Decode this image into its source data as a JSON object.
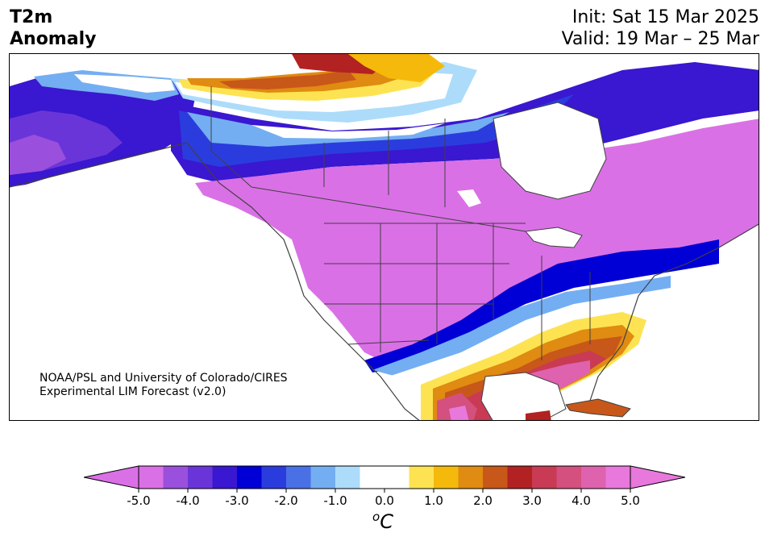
{
  "title": {
    "line1": "T2m",
    "line2": "Anomaly"
  },
  "dates": {
    "init": "Init: Sat 15 Mar 2025",
    "valid": "Valid: 19 Mar – 25 Mar"
  },
  "credit": {
    "line1": "NOAA/PSL and University of Colorado/CIRES",
    "line2": "Experimental LIM Forecast (v2.0)"
  },
  "colorbar": {
    "unit_main": "C",
    "unit_sup": "o",
    "ticks": [
      "-5.0",
      "-4.0",
      "-3.0",
      "-2.0",
      "-1.0",
      "0.0",
      "1.0",
      "2.0",
      "3.0",
      "4.0",
      "5.0"
    ],
    "colors": [
      "#da70e6",
      "#9a50dc",
      "#6a35d8",
      "#3a17d0",
      "#0000d6",
      "#2b3cde",
      "#4a70e6",
      "#74aef2",
      "#acdcfa",
      "#ffffff",
      "#ffffff",
      "#fde352",
      "#f5b90b",
      "#e08b11",
      "#c8571a",
      "#b22222",
      "#c93a54",
      "#d4507e",
      "#de62ae",
      "#e878dc"
    ],
    "extend_low_color": "#da70e6",
    "extend_high_color": "#e878dc"
  },
  "map_colors": {
    "ocean": "#ffffff",
    "land_cold": "#da70e6",
    "coast": "#404040"
  }
}
